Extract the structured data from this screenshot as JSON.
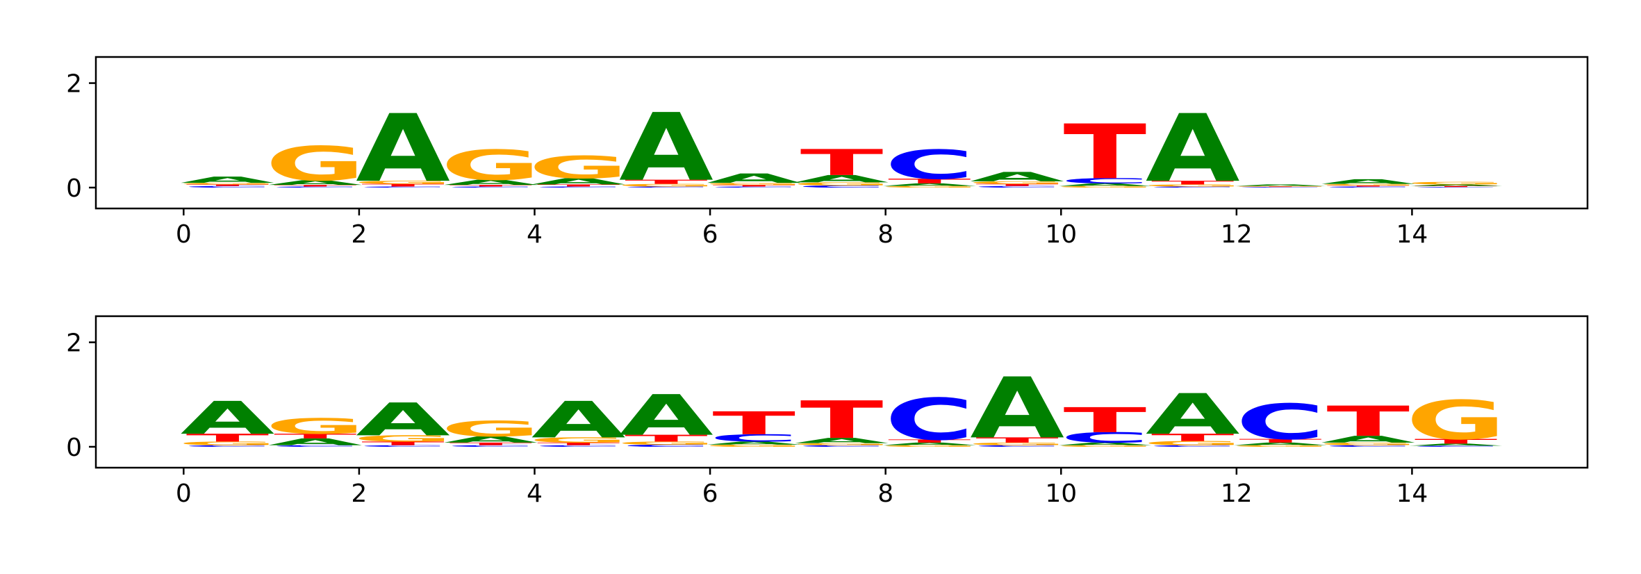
{
  "colors": {
    "A": "#008000",
    "C": "#0000ff",
    "G": "#ffa500",
    "T": "#ff0000"
  },
  "chart_data": [
    {
      "type": "sequence-logo",
      "title": "",
      "xlabel": "",
      "ylabel": "",
      "xlim": [
        -1,
        16
      ],
      "ylim": [
        -0.4,
        2.5
      ],
      "xticks": [
        "0",
        "2",
        "4",
        "6",
        "8",
        "10",
        "12",
        "14"
      ],
      "yticks": [
        "0",
        "2"
      ],
      "grid": false,
      "positions": [
        {
          "x": 0,
          "letters": [
            {
              "b": "C",
              "h": 0.03
            },
            {
              "b": "T",
              "h": 0.03
            },
            {
              "b": "G",
              "h": 0.03
            },
            {
              "b": "A",
              "h": 0.12
            }
          ]
        },
        {
          "x": 1,
          "letters": [
            {
              "b": "C",
              "h": 0.02
            },
            {
              "b": "T",
              "h": 0.03
            },
            {
              "b": "A",
              "h": 0.09
            },
            {
              "b": "G",
              "h": 0.66
            }
          ]
        },
        {
          "x": 2,
          "letters": [
            {
              "b": "C",
              "h": 0.02
            },
            {
              "b": "T",
              "h": 0.05
            },
            {
              "b": "G",
              "h": 0.06
            },
            {
              "b": "A",
              "h": 1.3
            }
          ]
        },
        {
          "x": 3,
          "letters": [
            {
              "b": "C",
              "h": 0.02
            },
            {
              "b": "T",
              "h": 0.03
            },
            {
              "b": "A",
              "h": 0.1
            },
            {
              "b": "G",
              "h": 0.58
            }
          ]
        },
        {
          "x": 4,
          "letters": [
            {
              "b": "C",
              "h": 0.02
            },
            {
              "b": "T",
              "h": 0.04
            },
            {
              "b": "A",
              "h": 0.12
            },
            {
              "b": "G",
              "h": 0.43
            }
          ]
        },
        {
          "x": 5,
          "letters": [
            {
              "b": "C",
              "h": 0.02
            },
            {
              "b": "G",
              "h": 0.05
            },
            {
              "b": "T",
              "h": 0.08
            },
            {
              "b": "A",
              "h": 1.3
            }
          ]
        },
        {
          "x": 6,
          "letters": [
            {
              "b": "C",
              "h": 0.02
            },
            {
              "b": "T",
              "h": 0.03
            },
            {
              "b": "G",
              "h": 0.04
            },
            {
              "b": "A",
              "h": 0.18
            }
          ]
        },
        {
          "x": 7,
          "letters": [
            {
              "b": "C",
              "h": 0.04
            },
            {
              "b": "G",
              "h": 0.06
            },
            {
              "b": "A",
              "h": 0.14
            },
            {
              "b": "T",
              "h": 0.5
            }
          ]
        },
        {
          "x": 8,
          "letters": [
            {
              "b": "G",
              "h": 0.03
            },
            {
              "b": "A",
              "h": 0.05
            },
            {
              "b": "T",
              "h": 0.09
            },
            {
              "b": "C",
              "h": 0.56
            }
          ]
        },
        {
          "x": 9,
          "letters": [
            {
              "b": "C",
              "h": 0.03
            },
            {
              "b": "T",
              "h": 0.04
            },
            {
              "b": "G",
              "h": 0.05
            },
            {
              "b": "A",
              "h": 0.18
            }
          ]
        },
        {
          "x": 10,
          "letters": [
            {
              "b": "G",
              "h": 0.03
            },
            {
              "b": "A",
              "h": 0.05
            },
            {
              "b": "C",
              "h": 0.1
            },
            {
              "b": "T",
              "h": 1.05
            }
          ]
        },
        {
          "x": 11,
          "letters": [
            {
              "b": "C",
              "h": 0.02
            },
            {
              "b": "G",
              "h": 0.04
            },
            {
              "b": "T",
              "h": 0.07
            },
            {
              "b": "A",
              "h": 1.3
            }
          ]
        },
        {
          "x": 12,
          "letters": [
            {
              "b": "C",
              "h": 0.01
            },
            {
              "b": "T",
              "h": 0.01
            },
            {
              "b": "G",
              "h": 0.01
            },
            {
              "b": "A",
              "h": 0.03
            }
          ]
        },
        {
          "x": 13,
          "letters": [
            {
              "b": "C",
              "h": 0.02
            },
            {
              "b": "T",
              "h": 0.02
            },
            {
              "b": "G",
              "h": 0.03
            },
            {
              "b": "A",
              "h": 0.09
            }
          ]
        },
        {
          "x": 14,
          "letters": [
            {
              "b": "C",
              "h": 0.01
            },
            {
              "b": "T",
              "h": 0.02
            },
            {
              "b": "A",
              "h": 0.03
            },
            {
              "b": "G",
              "h": 0.05
            }
          ]
        }
      ]
    },
    {
      "type": "sequence-logo",
      "title": "",
      "xlabel": "",
      "ylabel": "",
      "xlim": [
        -1,
        16
      ],
      "ylim": [
        -0.4,
        2.5
      ],
      "xticks": [
        "0",
        "2",
        "4",
        "6",
        "8",
        "10",
        "12",
        "14"
      ],
      "yticks": [
        "0",
        "2"
      ],
      "grid": false,
      "positions": [
        {
          "x": 0,
          "letters": [
            {
              "b": "C",
              "h": 0.03
            },
            {
              "b": "G",
              "h": 0.07
            },
            {
              "b": "T",
              "h": 0.15
            },
            {
              "b": "A",
              "h": 0.63
            }
          ]
        },
        {
          "x": 1,
          "letters": [
            {
              "b": "C",
              "h": 0.03
            },
            {
              "b": "A",
              "h": 0.13
            },
            {
              "b": "T",
              "h": 0.09
            },
            {
              "b": "G",
              "h": 0.3
            }
          ]
        },
        {
          "x": 2,
          "letters": [
            {
              "b": "C",
              "h": 0.03
            },
            {
              "b": "T",
              "h": 0.07
            },
            {
              "b": "G",
              "h": 0.12
            },
            {
              "b": "A",
              "h": 0.63
            }
          ]
        },
        {
          "x": 3,
          "letters": [
            {
              "b": "C",
              "h": 0.03
            },
            {
              "b": "T",
              "h": 0.05
            },
            {
              "b": "A",
              "h": 0.12
            },
            {
              "b": "G",
              "h": 0.3
            }
          ]
        },
        {
          "x": 4,
          "letters": [
            {
              "b": "C",
              "h": 0.03
            },
            {
              "b": "T",
              "h": 0.05
            },
            {
              "b": "G",
              "h": 0.1
            },
            {
              "b": "A",
              "h": 0.7
            }
          ]
        },
        {
          "x": 5,
          "letters": [
            {
              "b": "C",
              "h": 0.04
            },
            {
              "b": "G",
              "h": 0.06
            },
            {
              "b": "T",
              "h": 0.13
            },
            {
              "b": "A",
              "h": 0.78
            }
          ]
        },
        {
          "x": 6,
          "letters": [
            {
              "b": "G",
              "h": 0.04
            },
            {
              "b": "A",
              "h": 0.06
            },
            {
              "b": "C",
              "h": 0.14
            },
            {
              "b": "T",
              "h": 0.44
            }
          ]
        },
        {
          "x": 7,
          "letters": [
            {
              "b": "C",
              "h": 0.03
            },
            {
              "b": "G",
              "h": 0.04
            },
            {
              "b": "A",
              "h": 0.1
            },
            {
              "b": "T",
              "h": 0.72
            }
          ]
        },
        {
          "x": 8,
          "letters": [
            {
              "b": "G",
              "h": 0.03
            },
            {
              "b": "A",
              "h": 0.05
            },
            {
              "b": "T",
              "h": 0.06
            },
            {
              "b": "C",
              "h": 0.8
            }
          ]
        },
        {
          "x": 9,
          "letters": [
            {
              "b": "C",
              "h": 0.03
            },
            {
              "b": "G",
              "h": 0.05
            },
            {
              "b": "T",
              "h": 0.1
            },
            {
              "b": "A",
              "h": 1.17
            }
          ]
        },
        {
          "x": 10,
          "letters": [
            {
              "b": "G",
              "h": 0.03
            },
            {
              "b": "A",
              "h": 0.05
            },
            {
              "b": "C",
              "h": 0.2
            },
            {
              "b": "T",
              "h": 0.48
            }
          ]
        },
        {
          "x": 11,
          "letters": [
            {
              "b": "C",
              "h": 0.03
            },
            {
              "b": "G",
              "h": 0.08
            },
            {
              "b": "T",
              "h": 0.14
            },
            {
              "b": "A",
              "h": 0.78
            }
          ]
        },
        {
          "x": 12,
          "letters": [
            {
              "b": "G",
              "h": 0.03
            },
            {
              "b": "A",
              "h": 0.05
            },
            {
              "b": "T",
              "h": 0.07
            },
            {
              "b": "C",
              "h": 0.68
            }
          ]
        },
        {
          "x": 13,
          "letters": [
            {
              "b": "C",
              "h": 0.03
            },
            {
              "b": "G",
              "h": 0.05
            },
            {
              "b": "A",
              "h": 0.13
            },
            {
              "b": "T",
              "h": 0.58
            }
          ]
        },
        {
          "x": 14,
          "letters": [
            {
              "b": "C",
              "h": 0.02
            },
            {
              "b": "A",
              "h": 0.04
            },
            {
              "b": "T",
              "h": 0.09
            },
            {
              "b": "G",
              "h": 0.75
            }
          ]
        }
      ]
    }
  ]
}
